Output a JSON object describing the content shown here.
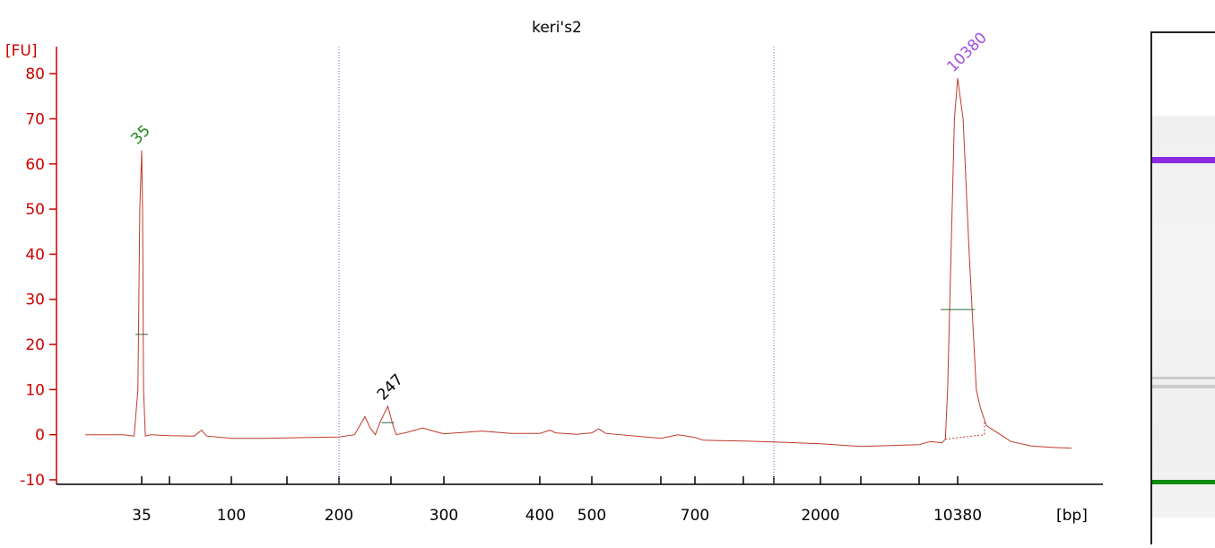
{
  "chart_data": {
    "type": "line",
    "title": "keri's2",
    "ylabel": "[FU]",
    "xlabel": "[bp]",
    "ylim": [
      -11,
      86
    ],
    "yticks": [
      -10,
      0,
      10,
      20,
      30,
      40,
      50,
      60,
      70,
      80
    ],
    "xticks": [
      {
        "label": "35",
        "x": 35
      },
      {
        "label": "",
        "x": 50
      },
      {
        "label": "100",
        "x": 100
      },
      {
        "label": "",
        "x": 150
      },
      {
        "label": "200",
        "x": 200
      },
      {
        "label": "",
        "x": 250
      },
      {
        "label": "300",
        "x": 300
      },
      {
        "label": "400",
        "x": 400
      },
      {
        "label": "500",
        "x": 500
      },
      {
        "label": "",
        "x": 600
      },
      {
        "label": "700",
        "x": 700
      },
      {
        "label": "",
        "x": 1000
      },
      {
        "label": "",
        "x": 1500
      },
      {
        "label": "2000",
        "x": 2000
      },
      {
        "label": "",
        "x": 4000
      },
      {
        "label": "",
        "x": 7000
      },
      {
        "label": "10380",
        "x": 10380
      }
    ],
    "vlines": [
      200,
      1500
    ],
    "series": [
      {
        "color": "#c0392b",
        "points": [
          [
            20,
            0
          ],
          [
            30,
            0
          ],
          [
            33,
            -0.3
          ],
          [
            34,
            10
          ],
          [
            34.5,
            50
          ],
          [
            35,
            63
          ],
          [
            35.5,
            50
          ],
          [
            36,
            10
          ],
          [
            37,
            -0.3
          ],
          [
            40,
            0
          ],
          [
            50,
            -0.2
          ],
          [
            70,
            -0.3
          ],
          [
            76,
            1
          ],
          [
            80,
            -0.3
          ],
          [
            100,
            -0.8
          ],
          [
            130,
            -0.8
          ],
          [
            170,
            -0.6
          ],
          [
            200,
            -0.5
          ],
          [
            215,
            0
          ],
          [
            220,
            2
          ],
          [
            225,
            4
          ],
          [
            230,
            1.5
          ],
          [
            235,
            0
          ],
          [
            240,
            3
          ],
          [
            247,
            6.3
          ],
          [
            252,
            2
          ],
          [
            255,
            0
          ],
          [
            265,
            0.5
          ],
          [
            280,
            1.5
          ],
          [
            290,
            0.8
          ],
          [
            300,
            0.2
          ],
          [
            340,
            0.8
          ],
          [
            370,
            0.3
          ],
          [
            400,
            0.3
          ],
          [
            420,
            1
          ],
          [
            430,
            0.4
          ],
          [
            470,
            0.1
          ],
          [
            500,
            0.4
          ],
          [
            510,
            1.3
          ],
          [
            520,
            0.3
          ],
          [
            600,
            -0.8
          ],
          [
            650,
            0
          ],
          [
            700,
            -0.6
          ],
          [
            750,
            -1.2
          ],
          [
            850,
            -1.3
          ],
          [
            1000,
            -1.4
          ],
          [
            1500,
            -1.6
          ],
          [
            2000,
            -2
          ],
          [
            3000,
            -2.3
          ],
          [
            4000,
            -2.6
          ],
          [
            5500,
            -2.4
          ],
          [
            7000,
            -2.2
          ],
          [
            8000,
            -1.5
          ],
          [
            9000,
            -1.8
          ],
          [
            9300,
            -1
          ],
          [
            9500,
            10
          ],
          [
            9800,
            40
          ],
          [
            10100,
            70
          ],
          [
            10380,
            79
          ],
          [
            10650,
            70
          ],
          [
            10950,
            40
          ],
          [
            11300,
            10
          ],
          [
            11500,
            6
          ],
          [
            11800,
            2
          ],
          [
            12500,
            0
          ],
          [
            13000,
            -1.5
          ],
          [
            14000,
            -2.5
          ],
          [
            15000,
            -2.8
          ],
          [
            16000,
            -3
          ]
        ]
      }
    ],
    "peaks": [
      {
        "label": "35",
        "x": 35,
        "y": 63,
        "color": "#1a8a1a"
      },
      {
        "label": "247",
        "x": 247,
        "y": 6.3,
        "color": "#000000"
      },
      {
        "label": "10380",
        "x": 10380,
        "y": 79,
        "color": "#a24ee0"
      }
    ]
  },
  "gel": {
    "upper_marker_color": "#8a2be2",
    "lower_marker_color": "#108a10",
    "band_color": "#cccccc"
  }
}
